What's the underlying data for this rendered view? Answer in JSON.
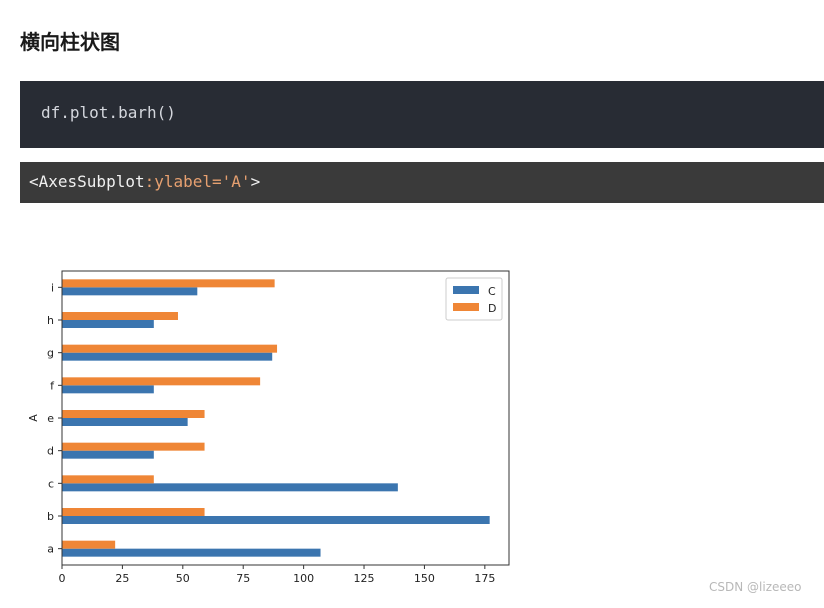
{
  "heading": "横向柱状图",
  "code": "df.plot.barh()",
  "output": {
    "prefix": "<AxesSubplot",
    "highlight": ":ylabel='A'",
    "suffix": ">"
  },
  "watermark": "CSDN @lizeeeo",
  "colors": {
    "C": "#3b75af",
    "D": "#ef8636"
  },
  "chart_data": {
    "type": "bar",
    "orientation": "horizontal",
    "categories": [
      "a",
      "b",
      "c",
      "d",
      "e",
      "f",
      "g",
      "h",
      "i"
    ],
    "series": [
      {
        "name": "C",
        "values": [
          107,
          177,
          139,
          38,
          52,
          38,
          87,
          38,
          56
        ]
      },
      {
        "name": "D",
        "values": [
          22,
          59,
          38,
          59,
          59,
          82,
          89,
          48,
          88
        ]
      }
    ],
    "title": "",
    "xlabel": "",
    "ylabel": "A",
    "xlim": [
      0,
      185
    ],
    "xticks": [
      0,
      25,
      50,
      75,
      100,
      125,
      150,
      175
    ],
    "grid": false,
    "legend_position": "top-right"
  }
}
